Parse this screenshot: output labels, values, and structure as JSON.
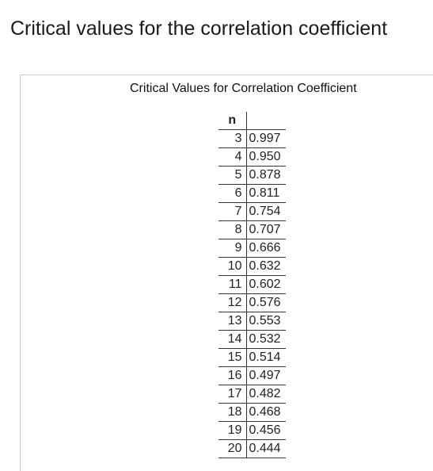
{
  "page": {
    "title": "Critical values for the correlation coefficient"
  },
  "table": {
    "caption": "Critical Values for Correlation Coefficient",
    "header_n": "n",
    "header_value": "",
    "rows": [
      {
        "n": "3",
        "value": "0.997"
      },
      {
        "n": "4",
        "value": "0.950"
      },
      {
        "n": "5",
        "value": "0.878"
      },
      {
        "n": "6",
        "value": "0.811"
      },
      {
        "n": "7",
        "value": "0.754"
      },
      {
        "n": "8",
        "value": "0.707"
      },
      {
        "n": "9",
        "value": "0.666"
      },
      {
        "n": "10",
        "value": "0.632"
      },
      {
        "n": "11",
        "value": "0.602"
      },
      {
        "n": "12",
        "value": "0.576"
      },
      {
        "n": "13",
        "value": "0.553"
      },
      {
        "n": "14",
        "value": "0.532"
      },
      {
        "n": "15",
        "value": "0.514"
      },
      {
        "n": "16",
        "value": "0.497"
      },
      {
        "n": "17",
        "value": "0.482"
      },
      {
        "n": "18",
        "value": "0.468"
      },
      {
        "n": "19",
        "value": "0.456"
      },
      {
        "n": "20",
        "value": "0.444"
      }
    ]
  }
}
